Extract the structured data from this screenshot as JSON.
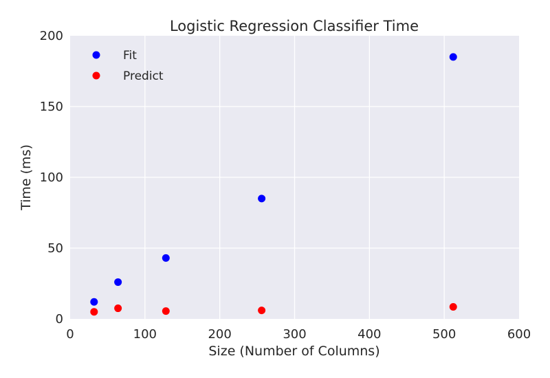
{
  "chart_data": {
    "type": "scatter",
    "title": "Logistic Regression Classifier Time",
    "xlabel": "Size (Number of Columns)",
    "ylabel": "Time (ms)",
    "xlim": [
      0,
      600
    ],
    "ylim": [
      0,
      200
    ],
    "xticks": [
      0,
      100,
      200,
      300,
      400,
      500,
      600
    ],
    "yticks": [
      0,
      50,
      100,
      150,
      200
    ],
    "grid": true,
    "background": "#eaeaf2",
    "legend_position": "top-left",
    "series": [
      {
        "name": "Fit",
        "color": "#0000ff",
        "x": [
          32,
          64,
          128,
          256,
          512
        ],
        "y": [
          12,
          26,
          43,
          85,
          185
        ]
      },
      {
        "name": "Predict",
        "color": "#ff0000",
        "x": [
          32,
          64,
          128,
          256,
          512
        ],
        "y": [
          5,
          7.5,
          5.5,
          6,
          8.5
        ]
      }
    ]
  }
}
